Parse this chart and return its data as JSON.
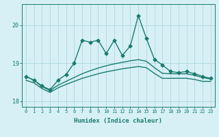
{
  "xlabel": "Humidex (Indice chaleur)",
  "x": [
    0,
    1,
    2,
    3,
    4,
    5,
    6,
    7,
    8,
    9,
    10,
    11,
    12,
    13,
    14,
    15,
    16,
    17,
    18,
    19,
    20,
    21,
    22,
    23
  ],
  "line1": [
    18.65,
    18.55,
    18.4,
    18.3,
    18.55,
    18.7,
    19.0,
    19.6,
    19.55,
    19.6,
    19.25,
    19.6,
    19.2,
    19.45,
    20.25,
    19.65,
    19.1,
    18.95,
    18.78,
    18.75,
    18.78,
    18.72,
    18.65,
    18.6
  ],
  "line2": [
    18.65,
    18.55,
    18.38,
    18.28,
    18.42,
    18.52,
    18.62,
    18.72,
    18.8,
    18.87,
    18.93,
    18.98,
    19.02,
    19.06,
    19.09,
    19.05,
    18.88,
    18.73,
    18.72,
    18.72,
    18.72,
    18.68,
    18.62,
    18.58
  ],
  "line3": [
    18.55,
    18.48,
    18.33,
    18.23,
    18.35,
    18.44,
    18.52,
    18.6,
    18.66,
    18.72,
    18.77,
    18.81,
    18.85,
    18.88,
    18.91,
    18.88,
    18.73,
    18.6,
    18.6,
    18.6,
    18.6,
    18.57,
    18.52,
    18.52
  ],
  "ylim": [
    17.85,
    20.55
  ],
  "yticks": [
    18,
    19,
    20
  ],
  "bg_color": "#d6f0f5",
  "grid_color": "#b0d8e0",
  "line_color": "#1a7a6e",
  "marker": "D",
  "markersize": 2.5,
  "linewidth": 1.0
}
